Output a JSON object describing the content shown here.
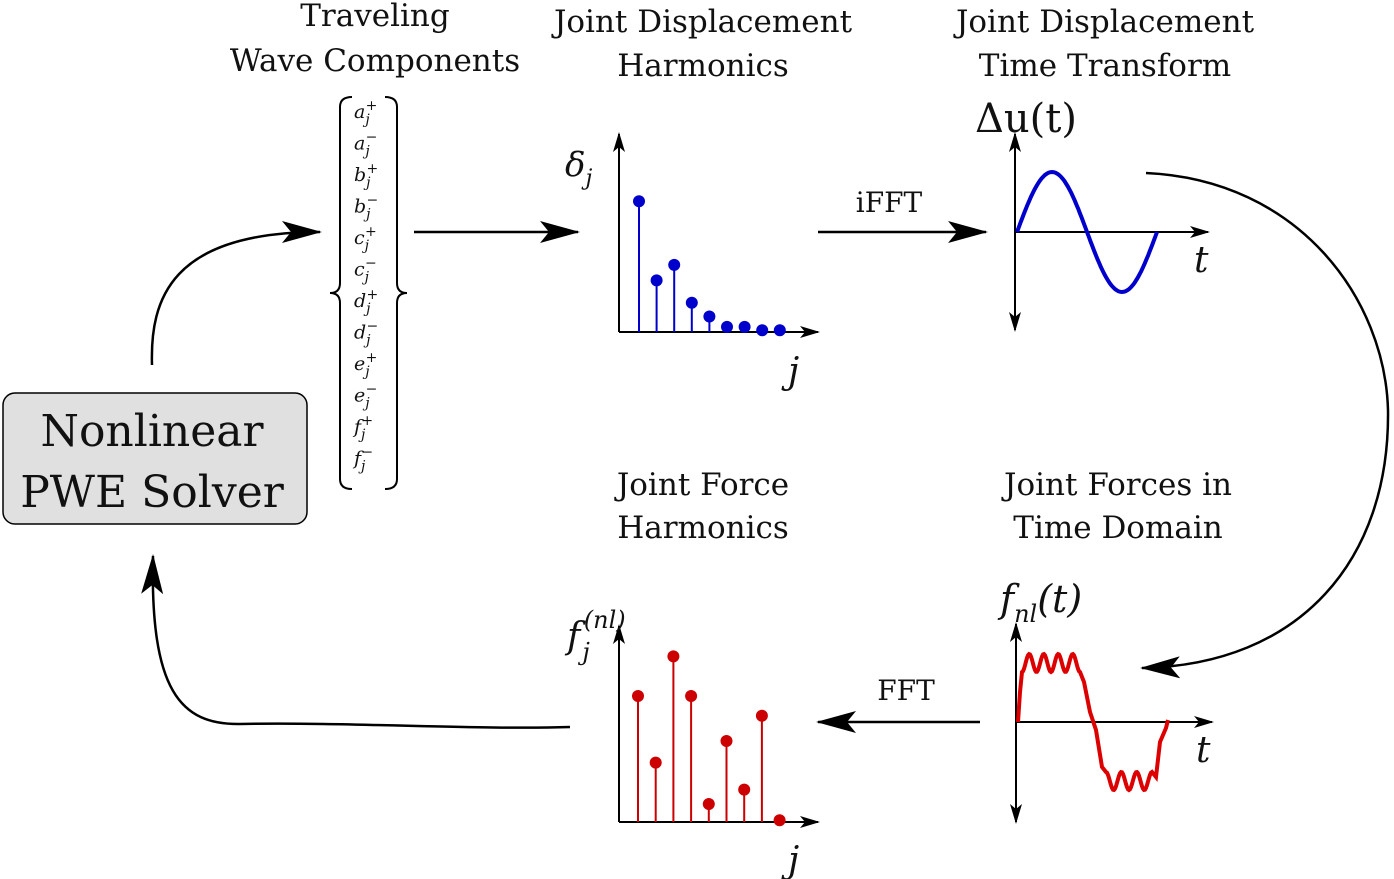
{
  "solver": {
    "line1": "Nonlinear",
    "line2": "PWE Solver"
  },
  "titles": {
    "traveling": [
      "Traveling",
      "Wave Components"
    ],
    "disp_harmonics": [
      "Joint Displacement",
      "Harmonics"
    ],
    "disp_time": [
      "Joint Displacement",
      "Time Transform"
    ],
    "force_harmonics": [
      "Joint Force",
      "Harmonics"
    ],
    "force_time": [
      "Joint Forces in",
      "Time Domain"
    ]
  },
  "arrow_labels": {
    "ifft": "iFFT",
    "fft": "FFT"
  },
  "vector": {
    "letters": [
      "a",
      "a",
      "b",
      "b",
      "c",
      "c",
      "d",
      "d",
      "e",
      "e",
      "f",
      "f"
    ],
    "subscript": "j",
    "signs": [
      "+",
      "−",
      "+",
      "−",
      "+",
      "−",
      "+",
      "−",
      "+",
      "−",
      "+",
      "−"
    ]
  },
  "axes": {
    "delta_j": {
      "sym": "δ",
      "sub": "j"
    },
    "delta_u": {
      "sym": "Δu(t)"
    },
    "f_nl": {
      "sym": "f",
      "sub": "nl",
      "arg": "(t)"
    },
    "f_j": {
      "sym": "f",
      "sub": "j",
      "sup": "(nl)"
    },
    "j": "j",
    "t": "t"
  },
  "colors": {
    "displacement": "#0000cc",
    "force": "#cc0000",
    "box_fill": "#e0e0e0"
  },
  "displacement_stems": [
    0.76,
    0.3,
    0.39,
    0.17,
    0.09,
    0.03,
    0.03,
    0.01,
    0.01
  ],
  "force_stems": [
    0.7,
    0.33,
    0.92,
    0.7,
    0.1,
    0.45,
    0.18,
    0.59,
    0.01
  ]
}
